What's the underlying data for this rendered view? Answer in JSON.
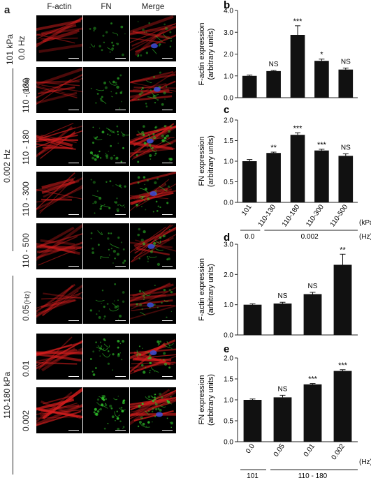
{
  "left": {
    "panel_letter": "a",
    "col_headers": [
      "F-actin",
      "FN",
      "Merge"
    ],
    "group1": {
      "line1": "101 kPa",
      "line2": "0.0 Hz"
    },
    "group2_label": "0.002 Hz",
    "group2_unit": "(kPa)",
    "group2_rows": [
      "110 - 130",
      "110 - 180",
      "110 - 300",
      "110 - 500"
    ],
    "group3_label": "110-180 kPa",
    "group3_unit": "(Hz)",
    "group3_rows": [
      "0.05",
      "0.01",
      "0.002"
    ]
  },
  "chart_data": [
    {
      "panel": "b",
      "type": "bar",
      "ylabel_line1": "F-actin expression",
      "ylabel_line2": "(arbitrary units)",
      "ylim": [
        0,
        4
      ],
      "yticks": [
        "0.0",
        "1.0",
        "2.0",
        "3.0",
        "4.0"
      ],
      "categories": [
        "101",
        "110-130",
        "110-180",
        "110-300",
        "110-500"
      ],
      "values": [
        1.0,
        1.22,
        2.88,
        1.69,
        1.29
      ],
      "errors": [
        0.04,
        0.03,
        0.42,
        0.08,
        0.07
      ],
      "significance": [
        "",
        "NS",
        "***",
        "*",
        "NS"
      ],
      "show_category_labels": false
    },
    {
      "panel": "c",
      "type": "bar",
      "ylabel_line1": "FN expression",
      "ylabel_line2": "(arbitrary units)",
      "ylim": [
        0,
        2
      ],
      "yticks": [
        "0.0",
        "0.5",
        "1.0",
        "1.5",
        "2.0"
      ],
      "categories": [
        "101",
        "110-130",
        "110-180",
        "110-300",
        "110-500"
      ],
      "values": [
        1.0,
        1.2,
        1.64,
        1.26,
        1.13
      ],
      "errors": [
        0.04,
        0.02,
        0.05,
        0.03,
        0.05
      ],
      "significance": [
        "",
        "**",
        "***",
        "***",
        "NS"
      ],
      "show_category_labels": true,
      "unit_top": "(kPa)",
      "unit_bottom": "(Hz)",
      "group_labels": [
        "0.0",
        "0.002"
      ]
    },
    {
      "panel": "d",
      "type": "bar",
      "ylabel_line1": "F-actin expression",
      "ylabel_line2": "(arbitrary units)",
      "ylim": [
        0,
        3
      ],
      "yticks": [
        "0.0",
        "1.0",
        "2.0",
        "3.0"
      ],
      "categories": [
        "0.0",
        "0.05",
        "0.01",
        "0.002"
      ],
      "values": [
        1.0,
        1.04,
        1.35,
        2.32
      ],
      "errors": [
        0.03,
        0.04,
        0.06,
        0.35
      ],
      "significance": [
        "",
        "NS",
        "NS",
        "**"
      ],
      "show_category_labels": false
    },
    {
      "panel": "e",
      "type": "bar",
      "ylabel_line1": "FN expression",
      "ylabel_line2": "(arbitrary units)",
      "ylim": [
        0,
        2
      ],
      "yticks": [
        "0.0",
        "0.5",
        "1.0",
        "1.5",
        "2.0"
      ],
      "categories": [
        "0.0",
        "0.05",
        "0.01",
        "0.002"
      ],
      "values": [
        1.0,
        1.06,
        1.37,
        1.69
      ],
      "errors": [
        0.02,
        0.05,
        0.02,
        0.03
      ],
      "significance": [
        "",
        "NS",
        "***",
        "***"
      ],
      "show_category_labels": true,
      "unit_top": "(Hz)",
      "group_labels": [
        "101",
        "110 - 180"
      ]
    }
  ],
  "colors": {
    "bar": "#111111",
    "actin": "#d81e1e",
    "fn": "#2fc22b",
    "nucleus": "#3a4fd8"
  }
}
